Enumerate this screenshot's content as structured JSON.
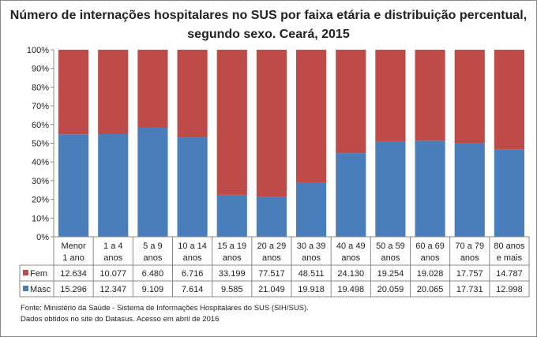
{
  "chart_data": {
    "type": "bar",
    "stacked": "percent",
    "title": "Número de internações hospitalares no SUS por faixa etária e distribuição percentual, segundo sexo.  Ceará, 2015",
    "categories": [
      [
        "Menor",
        "1 ano"
      ],
      [
        "1 a 4",
        "anos"
      ],
      [
        "5 a 9",
        "anos"
      ],
      [
        "10 a 14",
        "anos"
      ],
      [
        "15 a 19",
        "anos"
      ],
      [
        "20 a 29",
        "anos"
      ],
      [
        "30 a 39",
        "anos"
      ],
      [
        "40 a 49",
        "anos"
      ],
      [
        "50 a 59",
        "anos"
      ],
      [
        "60 a 69",
        "anos"
      ],
      [
        "70 a 79",
        "anos"
      ],
      [
        "80 anos",
        "e mais"
      ]
    ],
    "series": [
      {
        "name": "Masc",
        "color": "#4a7ebb",
        "values": [
          15296,
          12347,
          9109,
          7614,
          9585,
          21049,
          19918,
          19498,
          20059,
          20065,
          17731,
          12998
        ],
        "labels": [
          "15.296",
          "12.347",
          "9.109",
          "7.614",
          "9.585",
          "21.049",
          "19.918",
          "19.498",
          "20.059",
          "20.065",
          "17.731",
          "12.998"
        ]
      },
      {
        "name": "Fem",
        "color": "#be4b48",
        "values": [
          12634,
          10077,
          6480,
          6716,
          33199,
          77517,
          48511,
          24130,
          19254,
          19028,
          17757,
          14787
        ],
        "labels": [
          "12.634",
          "10.077",
          "6.480",
          "6.716",
          "33.199",
          "77.517",
          "48.511",
          "24.130",
          "19.254",
          "19.028",
          "17.757",
          "14.787"
        ]
      }
    ],
    "yticks": [
      "0%",
      "10%",
      "20%",
      "30%",
      "40%",
      "50%",
      "60%",
      "70%",
      "80%",
      "90%",
      "100%"
    ],
    "ylim": [
      0,
      100
    ],
    "grid": false,
    "legend": "data-table"
  },
  "source": [
    "Fonte: Ministério da Saúde - Sistema de Informações Hospitalares do SUS (SIH/SUS).",
    "Dados obtidos no site do Datasus. Acesso em abril de 2016"
  ]
}
